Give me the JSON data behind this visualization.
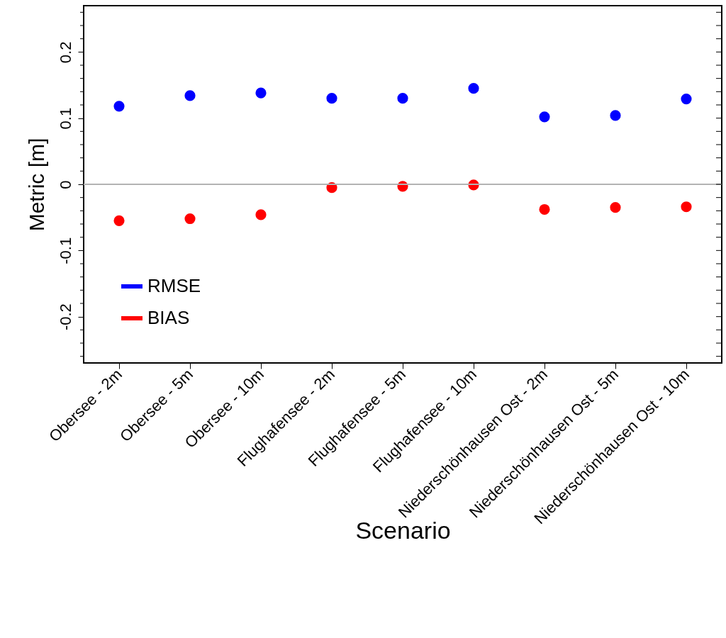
{
  "chart_data": {
    "type": "scatter",
    "xlabel": "Scenario",
    "ylabel": "Metric [m]",
    "categories": [
      "Obersee - 2m",
      "Obersee - 5m",
      "Obersee - 10m",
      "Flughafensee - 2m",
      "Flughafensee - 5m",
      "Flughafensee - 10m",
      "Niederschönhausen Ost - 2m",
      "Niederschönhausen Ost - 5m",
      "Niederschönhausen Ost - 10m"
    ],
    "series": [
      {
        "name": "RMSE",
        "color": "#0000ff",
        "values": [
          0.118,
          0.134,
          0.138,
          0.13,
          0.13,
          0.145,
          0.102,
          0.104,
          0.129
        ]
      },
      {
        "name": "BIAS",
        "color": "#ff0000",
        "values": [
          -0.055,
          -0.052,
          -0.046,
          -0.005,
          -0.003,
          -0.001,
          -0.038,
          -0.035,
          -0.034
        ]
      }
    ],
    "ylim": [
      -0.27,
      0.27
    ],
    "yticks": [
      {
        "value": -0.26,
        "label": null
      },
      {
        "value": -0.24,
        "label": null
      },
      {
        "value": -0.22,
        "label": null
      },
      -0.2,
      {
        "value": -0.18,
        "label": null
      },
      {
        "value": -0.16,
        "label": null
      },
      {
        "value": -0.14,
        "label": null
      },
      {
        "value": -0.12,
        "label": null
      },
      -0.1,
      {
        "value": -0.08,
        "label": null
      },
      {
        "value": -0.06,
        "label": null
      },
      {
        "value": -0.04,
        "label": null
      },
      {
        "value": -0.02,
        "label": null
      },
      0,
      {
        "value": 0.02,
        "label": null
      },
      {
        "value": 0.04,
        "label": null
      },
      {
        "value": 0.06,
        "label": null
      },
      {
        "value": 0.08,
        "label": null
      },
      0.1,
      {
        "value": 0.12,
        "label": null
      },
      {
        "value": 0.14,
        "label": null
      },
      {
        "value": 0.16,
        "label": null
      },
      {
        "value": 0.18,
        "label": null
      },
      0.2,
      {
        "value": 0.22,
        "label": null
      },
      {
        "value": 0.24,
        "label": null
      },
      {
        "value": 0.26,
        "label": null
      }
    ],
    "ref_lines": [
      {
        "axis": "y",
        "value": 0,
        "color": "#b3b3b3"
      }
    ],
    "legend": "bottom left",
    "marker": "circle",
    "grid": false
  }
}
